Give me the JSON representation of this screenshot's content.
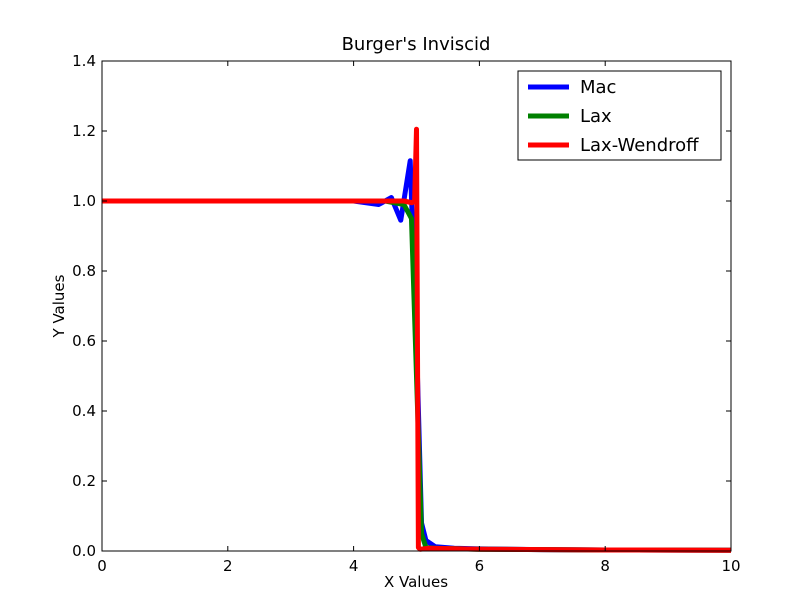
{
  "chart_data": {
    "type": "line",
    "title": "Burger's Inviscid",
    "xlabel": "X Values",
    "ylabel": "Y Values",
    "xlim": [
      0,
      10
    ],
    "ylim": [
      0,
      1.4
    ],
    "xticks": [
      "0",
      "2",
      "4",
      "6",
      "8",
      "10"
    ],
    "yticks": [
      "0.0",
      "0.2",
      "0.4",
      "0.6",
      "0.8",
      "1.0",
      "1.2",
      "1.4"
    ],
    "grid": false,
    "legend_position": "top-right",
    "series": [
      {
        "name": "Mac",
        "color": "#0000ff",
        "x": [
          0,
          4.0,
          4.2,
          4.4,
          4.6,
          4.75,
          4.9,
          5.0,
          5.08,
          5.15,
          5.3,
          5.6,
          6.0,
          7.0,
          8.0,
          10.0
        ],
        "y": [
          1.0,
          1.0,
          0.995,
          0.99,
          1.01,
          0.945,
          1.115,
          0.6,
          0.08,
          0.03,
          0.012,
          0.008,
          0.006,
          0.004,
          0.003,
          0.002
        ]
      },
      {
        "name": "Lax",
        "color": "#008000",
        "x": [
          0,
          4.5,
          4.8,
          4.92,
          5.0,
          5.08,
          5.15,
          5.3,
          6.0,
          8.0,
          10.0
        ],
        "y": [
          1.0,
          1.0,
          0.99,
          0.95,
          0.5,
          0.05,
          0.01,
          0.008,
          0.005,
          0.003,
          0.002
        ]
      },
      {
        "name": "Lax-Wendroff",
        "color": "#ff0000",
        "x": [
          0,
          4.8,
          4.93,
          4.97,
          5.0,
          5.015,
          5.03,
          5.06,
          5.2,
          6.0,
          8.0,
          10.0
        ],
        "y": [
          1.0,
          1.0,
          0.995,
          1.0,
          1.205,
          0.6,
          0.01,
          0.005,
          0.008,
          0.005,
          0.003,
          0.002
        ]
      }
    ]
  }
}
